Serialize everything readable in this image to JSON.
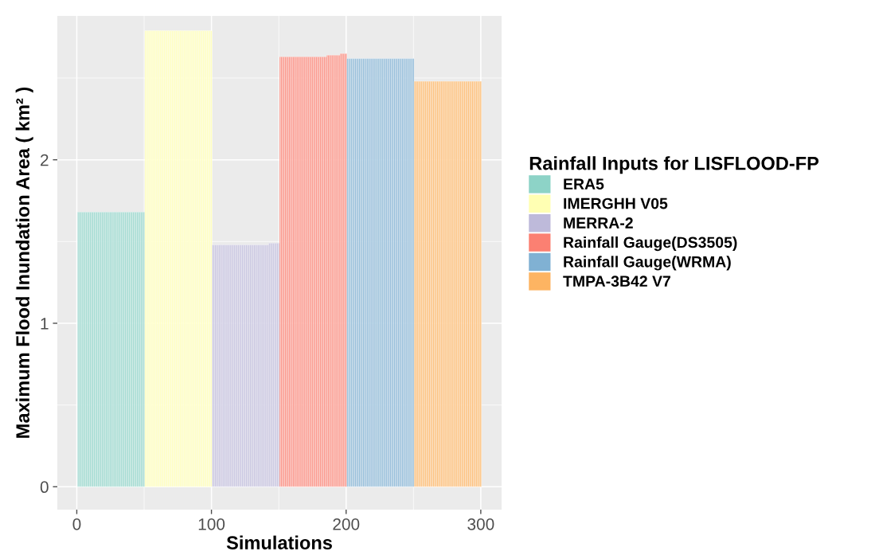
{
  "chart_data": {
    "type": "bar",
    "xlabel": "Simulations",
    "ylabel": "Maximum Flood Inundation Area ( km² )",
    "legend_title": "Rainfall Inputs for LISFLOOD-FP",
    "legend": "right",
    "grid": true,
    "xlim": [
      -14.45,
      315.45
    ],
    "xticks": [
      0,
      100,
      200,
      300
    ],
    "ylim": [
      -0.14,
      2.88
    ],
    "yticks": [
      0,
      1,
      2
    ],
    "series": [
      {
        "name": "ERA5",
        "color": "#8dd3c7",
        "x": [
          1,
          2,
          3,
          4,
          5,
          6,
          7,
          8,
          9,
          10,
          11,
          12,
          13,
          14,
          15,
          16,
          17,
          18,
          19,
          20,
          21,
          22,
          23,
          24,
          25,
          26,
          27,
          28,
          29,
          30,
          31,
          32,
          33,
          34,
          35,
          36,
          37,
          38,
          39,
          40,
          41,
          42,
          43,
          44,
          45,
          46,
          47,
          48,
          49,
          50
        ],
        "values": [
          1.68,
          1.68,
          1.68,
          1.68,
          1.68,
          1.68,
          1.68,
          1.68,
          1.68,
          1.68,
          1.68,
          1.68,
          1.68,
          1.68,
          1.68,
          1.68,
          1.68,
          1.68,
          1.68,
          1.68,
          1.68,
          1.68,
          1.68,
          1.68,
          1.68,
          1.68,
          1.68,
          1.68,
          1.68,
          1.68,
          1.68,
          1.68,
          1.68,
          1.68,
          1.68,
          1.68,
          1.68,
          1.68,
          1.68,
          1.68,
          1.68,
          1.68,
          1.68,
          1.68,
          1.68,
          1.68,
          1.68,
          1.68,
          1.68,
          1.68
        ]
      },
      {
        "name": "IMERGHH V05",
        "color": "#ffffb3",
        "x": [
          51,
          52,
          53,
          54,
          55,
          56,
          57,
          58,
          59,
          60,
          61,
          62,
          63,
          64,
          65,
          66,
          67,
          68,
          69,
          70,
          71,
          72,
          73,
          74,
          75,
          76,
          77,
          78,
          79,
          80,
          81,
          82,
          83,
          84,
          85,
          86,
          87,
          88,
          89,
          90,
          91,
          92,
          93,
          94,
          95,
          96,
          97,
          98,
          99,
          100
        ],
        "values": [
          2.79,
          2.79,
          2.79,
          2.79,
          2.79,
          2.79,
          2.79,
          2.79,
          2.79,
          2.79,
          2.79,
          2.79,
          2.79,
          2.79,
          2.79,
          2.79,
          2.79,
          2.79,
          2.79,
          2.79,
          2.79,
          2.79,
          2.79,
          2.79,
          2.79,
          2.79,
          2.79,
          2.79,
          2.79,
          2.79,
          2.79,
          2.79,
          2.79,
          2.79,
          2.79,
          2.79,
          2.79,
          2.79,
          2.79,
          2.79,
          2.79,
          2.79,
          2.79,
          2.79,
          2.79,
          2.79,
          2.79,
          2.79,
          2.79,
          2.79
        ]
      },
      {
        "name": "MERRA-2",
        "color": "#bebada",
        "x": [
          101,
          102,
          103,
          104,
          105,
          106,
          107,
          108,
          109,
          110,
          111,
          112,
          113,
          114,
          115,
          116,
          117,
          118,
          119,
          120,
          121,
          122,
          123,
          124,
          125,
          126,
          127,
          128,
          129,
          130,
          131,
          132,
          133,
          134,
          135,
          136,
          137,
          138,
          139,
          140,
          141,
          142,
          143,
          144,
          145,
          146,
          147,
          148,
          149,
          150
        ],
        "values": [
          1.48,
          1.48,
          1.48,
          1.48,
          1.48,
          1.48,
          1.48,
          1.48,
          1.48,
          1.48,
          1.48,
          1.48,
          1.48,
          1.48,
          1.48,
          1.48,
          1.48,
          1.48,
          1.48,
          1.48,
          1.48,
          1.48,
          1.48,
          1.48,
          1.48,
          1.48,
          1.48,
          1.48,
          1.48,
          1.48,
          1.48,
          1.48,
          1.48,
          1.48,
          1.48,
          1.48,
          1.48,
          1.48,
          1.48,
          1.48,
          1.48,
          1.48,
          1.49,
          1.49,
          1.49,
          1.49,
          1.49,
          1.49,
          1.49,
          1.49
        ]
      },
      {
        "name": "Rainfall Gauge(DS3505)",
        "color": "#fb8072",
        "x": [
          151,
          152,
          153,
          154,
          155,
          156,
          157,
          158,
          159,
          160,
          161,
          162,
          163,
          164,
          165,
          166,
          167,
          168,
          169,
          170,
          171,
          172,
          173,
          174,
          175,
          176,
          177,
          178,
          179,
          180,
          181,
          182,
          183,
          184,
          185,
          186,
          187,
          188,
          189,
          190,
          191,
          192,
          193,
          194,
          195,
          196,
          197,
          198,
          199,
          200
        ],
        "values": [
          2.63,
          2.63,
          2.63,
          2.63,
          2.63,
          2.63,
          2.63,
          2.63,
          2.63,
          2.63,
          2.63,
          2.63,
          2.63,
          2.63,
          2.63,
          2.63,
          2.63,
          2.63,
          2.63,
          2.63,
          2.63,
          2.63,
          2.63,
          2.63,
          2.63,
          2.63,
          2.63,
          2.63,
          2.63,
          2.63,
          2.63,
          2.63,
          2.63,
          2.63,
          2.63,
          2.64,
          2.64,
          2.64,
          2.64,
          2.64,
          2.64,
          2.64,
          2.64,
          2.64,
          2.64,
          2.65,
          2.65,
          2.65,
          2.65,
          2.65
        ]
      },
      {
        "name": "Rainfall Gauge(WRMA)",
        "color": "#80b1d3",
        "x": [
          201,
          202,
          203,
          204,
          205,
          206,
          207,
          208,
          209,
          210,
          211,
          212,
          213,
          214,
          215,
          216,
          217,
          218,
          219,
          220,
          221,
          222,
          223,
          224,
          225,
          226,
          227,
          228,
          229,
          230,
          231,
          232,
          233,
          234,
          235,
          236,
          237,
          238,
          239,
          240,
          241,
          242,
          243,
          244,
          245,
          246,
          247,
          248,
          249,
          250
        ],
        "values": [
          2.62,
          2.62,
          2.62,
          2.62,
          2.62,
          2.62,
          2.62,
          2.62,
          2.62,
          2.62,
          2.62,
          2.62,
          2.62,
          2.62,
          2.62,
          2.62,
          2.62,
          2.62,
          2.62,
          2.62,
          2.62,
          2.62,
          2.62,
          2.62,
          2.62,
          2.62,
          2.62,
          2.62,
          2.62,
          2.62,
          2.62,
          2.62,
          2.62,
          2.62,
          2.62,
          2.62,
          2.62,
          2.62,
          2.62,
          2.62,
          2.62,
          2.62,
          2.62,
          2.62,
          2.62,
          2.62,
          2.62,
          2.62,
          2.62,
          2.62
        ]
      },
      {
        "name": "TMPA-3B42 V7",
        "color": "#fdb462",
        "x": [
          251,
          252,
          253,
          254,
          255,
          256,
          257,
          258,
          259,
          260,
          261,
          262,
          263,
          264,
          265,
          266,
          267,
          268,
          269,
          270,
          271,
          272,
          273,
          274,
          275,
          276,
          277,
          278,
          279,
          280,
          281,
          282,
          283,
          284,
          285,
          286,
          287,
          288,
          289,
          290,
          291,
          292,
          293,
          294,
          295,
          296,
          297,
          298,
          299,
          300
        ],
        "values": [
          2.48,
          2.48,
          2.48,
          2.48,
          2.48,
          2.48,
          2.48,
          2.48,
          2.48,
          2.48,
          2.48,
          2.48,
          2.48,
          2.48,
          2.48,
          2.48,
          2.48,
          2.48,
          2.48,
          2.48,
          2.48,
          2.48,
          2.48,
          2.48,
          2.48,
          2.48,
          2.48,
          2.48,
          2.48,
          2.48,
          2.48,
          2.48,
          2.48,
          2.48,
          2.48,
          2.48,
          2.48,
          2.48,
          2.48,
          2.48,
          2.48,
          2.48,
          2.48,
          2.48,
          2.48,
          2.48,
          2.48,
          2.48,
          2.48,
          2.48
        ]
      }
    ]
  }
}
